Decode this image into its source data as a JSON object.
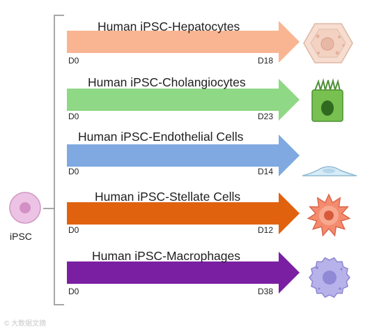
{
  "source_cell": {
    "label": "iPSC",
    "colors": {
      "fill": "#ecc3e4",
      "nucleus": "#d38fc6"
    }
  },
  "pathways": [
    {
      "title": "Human iPSC-Hepatocytes",
      "start": "D0",
      "end": "D18",
      "color": "#f9b592",
      "cell_icon": "hepatocyte-icon"
    },
    {
      "title": "Human iPSC-Cholangiocytes",
      "start": "D0",
      "end": "D23",
      "color": "#8fd886",
      "cell_icon": "cholangiocyte-icon"
    },
    {
      "title": "Human iPSC-Endothelial Cells",
      "start": "D0",
      "end": "D14",
      "color": "#7fa9e0",
      "cell_icon": "endothelial-cell-icon"
    },
    {
      "title": "Human iPSC-Stellate Cells",
      "start": "D0",
      "end": "D12",
      "color": "#e0620f",
      "cell_icon": "stellate-cell-icon"
    },
    {
      "title": "Human iPSC-Macrophages",
      "start": "D0",
      "end": "D38",
      "color": "#7a1fa2",
      "cell_icon": "macrophage-icon"
    }
  ],
  "watermark": "© 大数据文摘"
}
